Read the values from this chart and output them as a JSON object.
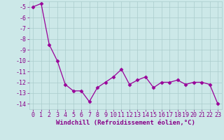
{
  "x": [
    0,
    1,
    2,
    3,
    4,
    5,
    6,
    7,
    8,
    9,
    10,
    11,
    12,
    13,
    14,
    15,
    16,
    17,
    18,
    19,
    20,
    21,
    22,
    23
  ],
  "y": [
    -5.0,
    -4.7,
    -8.5,
    -10.0,
    -12.2,
    -12.8,
    -12.8,
    -13.8,
    -12.5,
    -12.0,
    -11.5,
    -10.8,
    -12.2,
    -11.8,
    -11.5,
    -12.5,
    -12.0,
    -12.0,
    -11.8,
    -12.2,
    -12.0,
    -12.0,
    -12.2,
    -14.0
  ],
  "line_color": "#990099",
  "marker": "D",
  "marker_size": 2.5,
  "bg_color": "#cce8e8",
  "grid_color": "#aacccc",
  "xlabel": "Windchill (Refroidissement éolien,°C)",
  "ylim": [
    -14.5,
    -4.5
  ],
  "xlim": [
    -0.5,
    23.5
  ],
  "yticks": [
    -5,
    -6,
    -7,
    -8,
    -9,
    -10,
    -11,
    -12,
    -13,
    -14
  ],
  "xticks": [
    0,
    1,
    2,
    3,
    4,
    5,
    6,
    7,
    8,
    9,
    10,
    11,
    12,
    13,
    14,
    15,
    16,
    17,
    18,
    19,
    20,
    21,
    22,
    23
  ],
  "xlabel_fontsize": 6.5,
  "tick_fontsize": 6.0,
  "label_color": "#880088"
}
